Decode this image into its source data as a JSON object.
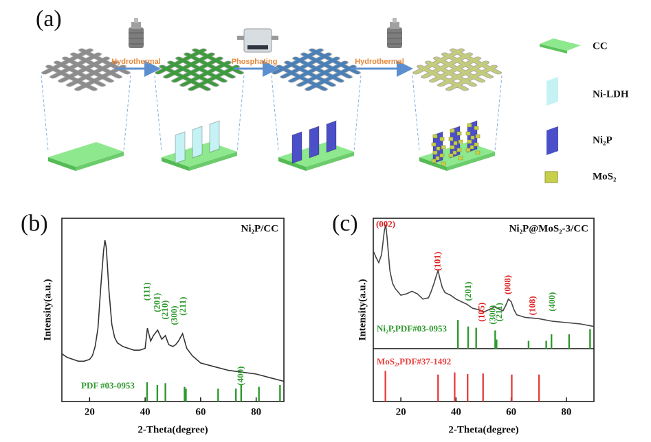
{
  "schematic": {
    "label": "(a)",
    "steps": [
      "Hydrothermal",
      "Phosphating",
      "Hydrothermal"
    ],
    "legend": [
      "CC",
      "Ni-LDH",
      "Ni₂P",
      "MoS₂"
    ]
  },
  "chart_data": [
    {
      "type": "line",
      "panel_label": "(b)",
      "title": "Ni₂P/CC",
      "x_label": "2-Theta(degree)",
      "y_label": "Intensity(a.u.)",
      "xlim": [
        10,
        90
      ],
      "xticks": [
        20,
        40,
        60,
        80
      ],
      "ylim": [
        0,
        100
      ],
      "series": [
        {
          "color": "#333333",
          "x": [
            10,
            12,
            14,
            16,
            18,
            20,
            21,
            22,
            23,
            24,
            25,
            25.5,
            26,
            27,
            28,
            29,
            30,
            32,
            34,
            36,
            38,
            40,
            40.8,
            42,
            43,
            44.5,
            46,
            47.3,
            48.5,
            50,
            51,
            52,
            53.5,
            55,
            57,
            60,
            65,
            70,
            75,
            80,
            85,
            90
          ],
          "values": [
            26,
            24,
            23,
            22,
            22,
            23,
            25,
            30,
            40,
            62,
            82,
            88,
            84,
            60,
            42,
            35,
            32,
            30,
            29,
            28,
            28,
            29,
            40,
            33,
            36,
            39,
            34,
            36,
            31,
            30,
            31,
            33,
            37,
            29,
            25,
            21,
            19,
            17,
            16,
            15,
            13,
            11
          ]
        }
      ],
      "annotations": [
        {
          "text": "(111)",
          "x": 40.9,
          "y": 60,
          "color": "#2e9a2e"
        },
        {
          "text": "(201)",
          "x": 44.5,
          "y": 54,
          "color": "#2e9a2e"
        },
        {
          "text": "(210)",
          "x": 47.4,
          "y": 50,
          "color": "#2e9a2e"
        },
        {
          "text": "(300)",
          "x": 50.8,
          "y": 47,
          "color": "#2e9a2e"
        },
        {
          "text": "(211)",
          "x": 53.8,
          "y": 52,
          "color": "#2e9a2e"
        },
        {
          "text": "(400)",
          "x": 74.6,
          "y": 14,
          "color": "#2e9a2e"
        }
      ],
      "references": [
        {
          "name": "PDF #03-0953",
          "color": "#2e9a2e",
          "ylim": [
            0,
            100
          ],
          "positions": [
            40.7,
            44.4,
            47.3,
            54.2,
            54.7,
            66.3,
            72.7,
            74.6,
            81.0,
            88.6
          ],
          "heights": [
            10.5,
            9,
            10,
            8,
            7,
            7,
            7,
            9,
            8,
            9
          ]
        }
      ]
    },
    {
      "type": "line",
      "panel_label": "(c)",
      "title": "Ni₂P@MoS₂-3/CC",
      "x_label": "2-Theta(degree)",
      "y_label": "Intensity(a.u.)",
      "xlim": [
        10,
        90
      ],
      "xticks": [
        20,
        40,
        60,
        80
      ],
      "ylim": [
        0,
        100
      ],
      "series": [
        {
          "color": "#444444",
          "x": [
            10,
            11,
            12,
            13,
            14,
            14.5,
            15,
            16,
            17,
            18,
            20,
            22,
            24,
            26,
            28,
            30,
            31,
            32,
            33,
            33.5,
            34,
            35,
            36,
            38,
            40,
            42,
            44,
            46,
            48,
            50,
            52,
            54,
            56,
            57,
            58,
            59,
            60,
            61,
            62,
            65,
            70,
            75,
            80,
            85,
            90
          ],
          "values": [
            75,
            70,
            66,
            72,
            90,
            95,
            85,
            60,
            50,
            46,
            41,
            42,
            44,
            42,
            38,
            39,
            44,
            50,
            57,
            60,
            55,
            47,
            43,
            41,
            38,
            36,
            34,
            31,
            30,
            28,
            30,
            32,
            30,
            29,
            33,
            38,
            36,
            30,
            26,
            24,
            23,
            21,
            20,
            19,
            17
          ]
        }
      ],
      "annotations": [
        {
          "text": "(002)",
          "x": 14.5,
          "y": 95,
          "color": "#e02020"
        },
        {
          "text": "(101)",
          "x": 33.5,
          "y": 67,
          "color": "#e02020"
        },
        {
          "text": "(201)",
          "x": 44.6,
          "y": 44,
          "color": "#2e9a2e"
        },
        {
          "text": "(105)",
          "x": 49.5,
          "y": 28,
          "color": "#e02020"
        },
        {
          "text": "(300)",
          "x": 53.5,
          "y": 26,
          "color": "#2e9a2e"
        },
        {
          "text": "(211)",
          "x": 55.8,
          "y": 28,
          "color": "#2e9a2e"
        },
        {
          "text": "(008)",
          "x": 59,
          "y": 49,
          "color": "#e02020"
        },
        {
          "text": "(108)",
          "x": 68,
          "y": 33,
          "color": "#e02020"
        },
        {
          "text": "(400)",
          "x": 75,
          "y": 36,
          "color": "#2e9a2e"
        }
      ],
      "references": [
        {
          "name": "Ni₂P,PDF#03-0953",
          "color": "#2e9a2e",
          "ylim": [
            0,
            100
          ],
          "positions": [
            40.7,
            44.4,
            47.3,
            54.2,
            54.7,
            66.3,
            72.7,
            74.6,
            81.0,
            88.6
          ],
          "heights": [
            22,
            17,
            16,
            14,
            7,
            6,
            6,
            11,
            11,
            15
          ]
        },
        {
          "name": "MoS₂,PDF#37-1492",
          "color": "#e84040",
          "ylim": [
            0,
            100
          ],
          "positions": [
            14.4,
            33.5,
            39.5,
            44.2,
            49.8,
            60.2,
            70.1
          ],
          "heights": [
            58,
            51,
            55,
            52,
            53,
            51,
            51
          ]
        }
      ]
    }
  ]
}
